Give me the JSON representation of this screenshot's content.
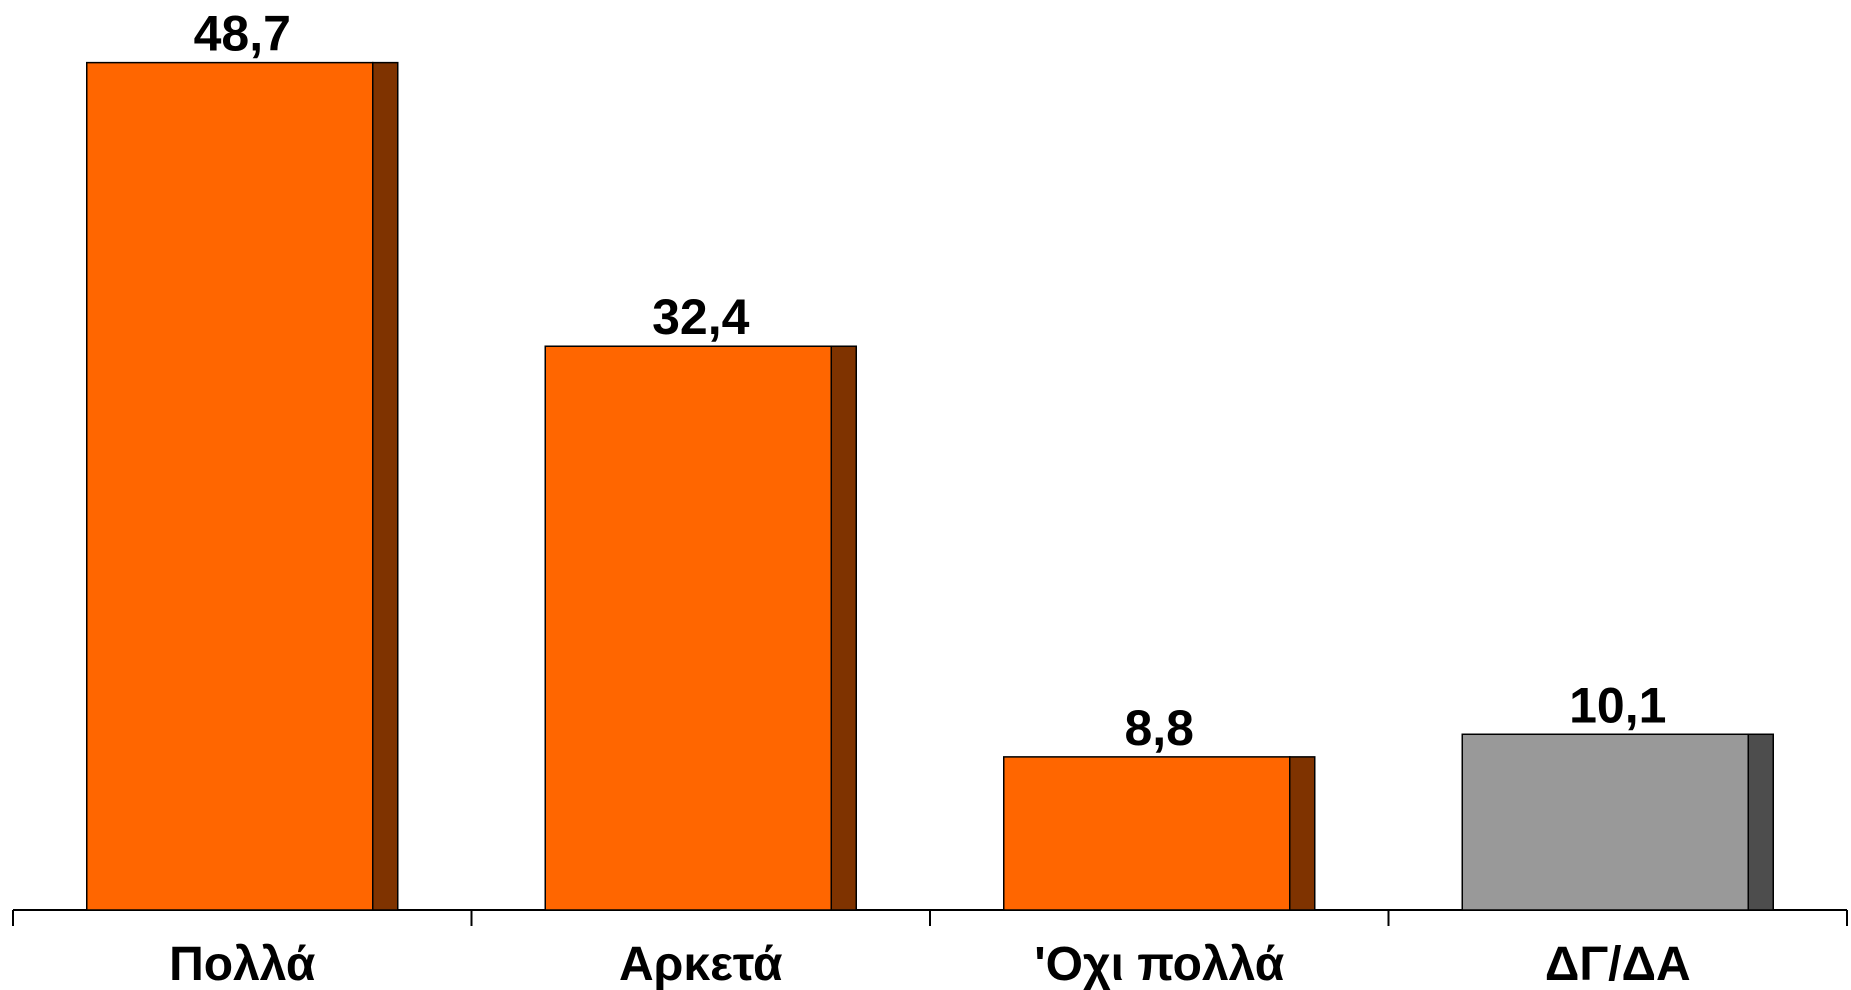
{
  "chart_data": {
    "type": "bar",
    "categories": [
      "Πολλά",
      "Αρκετά",
      "'Οχι πολλά",
      "ΔΓ/ΔΑ"
    ],
    "values": [
      48.7,
      32.4,
      8.8,
      10.1
    ],
    "value_labels": [
      "48,7",
      "32,4",
      "8,8",
      "10,1"
    ],
    "title": "",
    "xlabel": "",
    "ylabel": "",
    "ylim": [
      0,
      50
    ],
    "grid": false,
    "legend": "none",
    "colors": {
      "bar_front": [
        "#ff6600",
        "#ff6600",
        "#ff6600",
        "#999999"
      ],
      "bar_side": [
        "#7f3300",
        "#7f3300",
        "#7f3300",
        "#4d4d4d"
      ],
      "outline": "#000000",
      "axis": "#000000"
    }
  }
}
